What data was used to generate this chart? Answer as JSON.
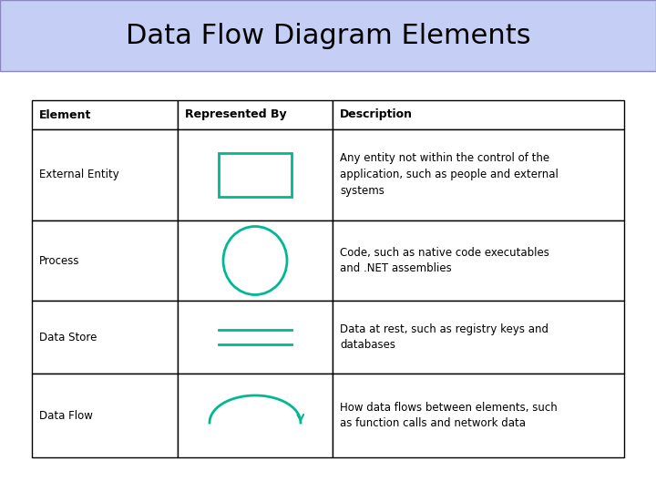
{
  "title": "Data Flow Diagram Elements",
  "title_bg_color": "#c5cff5",
  "title_fontsize": 22,
  "table_border_color": "#000000",
  "header_row": [
    "Element",
    "Represented By",
    "Description"
  ],
  "rows": [
    {
      "element": "External Entity",
      "description": "Any entity not within the control of the\napplication, such as people and external\nsystems"
    },
    {
      "element": "Process",
      "description": "Code, such as native code executables\nand .NET assemblies"
    },
    {
      "element": "Data Store",
      "description": "Data at rest, such as registry keys and\ndatabases"
    },
    {
      "element": "Data Flow",
      "description": "How data flows between elements, such\nas function calls and network data"
    }
  ],
  "shape_color": "#00b894",
  "font_size_header": 9,
  "font_size_body": 8.5,
  "font_family": "DejaVu Sans"
}
